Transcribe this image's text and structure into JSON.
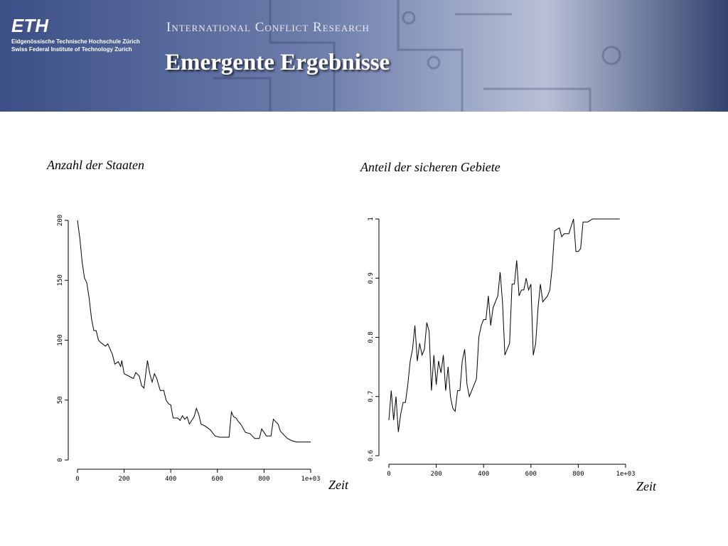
{
  "header": {
    "logo": "ETH",
    "institution_de": "Eidgenössische Technische Hochschule Zürich",
    "institution_en": "Swiss Federal Institute of Technology Zurich",
    "unit": "International Conflict Research",
    "title": "Emergente Ergebnisse"
  },
  "chart_data": [
    {
      "type": "line",
      "title": "Anzahl der Staaten",
      "xlabel": "Zeit",
      "color": "#000000",
      "xlim": [
        0,
        1000
      ],
      "xticks": [
        0,
        200,
        400,
        600,
        800,
        {
          "value": 1000,
          "label": "1e+03"
        }
      ],
      "ylim": [
        0,
        200
      ],
      "yticks": [
        0,
        50,
        100,
        150,
        200
      ],
      "grid": false,
      "x": [
        0,
        10,
        20,
        30,
        40,
        50,
        60,
        70,
        80,
        90,
        100,
        120,
        130,
        150,
        160,
        175,
        185,
        190,
        200,
        220,
        240,
        250,
        265,
        275,
        285,
        300,
        310,
        320,
        330,
        340,
        355,
        370,
        380,
        390,
        400,
        410,
        430,
        440,
        450,
        460,
        470,
        480,
        500,
        510,
        520,
        530,
        550,
        570,
        590,
        610,
        640,
        650,
        660,
        670,
        680,
        690,
        700,
        720,
        740,
        750,
        760,
        780,
        790,
        800,
        810,
        830,
        840,
        860,
        870,
        890,
        900,
        920,
        940,
        1000
      ],
      "values": [
        200,
        185,
        165,
        152,
        148,
        135,
        118,
        108,
        108,
        100,
        98,
        95,
        97,
        88,
        80,
        82,
        78,
        83,
        72,
        70,
        68,
        73,
        70,
        62,
        60,
        83,
        72,
        65,
        72,
        68,
        58,
        58,
        50,
        47,
        46,
        35,
        35,
        33,
        37,
        34,
        36,
        30,
        36,
        43,
        38,
        30,
        28,
        25,
        20,
        19,
        19,
        19,
        40,
        36,
        35,
        32,
        30,
        23,
        22,
        20,
        18,
        18,
        26,
        23,
        20,
        20,
        34,
        30,
        24,
        20,
        18,
        16,
        15,
        15
      ]
    },
    {
      "type": "line",
      "title": "Anteil der sicheren Gebiete",
      "xlabel": "Zeit",
      "color": "#000000",
      "xlim": [
        0,
        1000
      ],
      "xticks": [
        0,
        200,
        400,
        600,
        800,
        {
          "value": 1000,
          "label": "1e+03"
        }
      ],
      "ylim": [
        0.6,
        1.0
      ],
      "yticks": [
        0.6,
        0.7,
        0.8,
        0.9,
        1
      ],
      "grid": false,
      "x": [
        0,
        10,
        20,
        30,
        40,
        50,
        60,
        70,
        80,
        90,
        100,
        110,
        120,
        130,
        140,
        150,
        160,
        170,
        180,
        190,
        200,
        210,
        220,
        230,
        240,
        250,
        260,
        270,
        280,
        290,
        300,
        310,
        320,
        330,
        340,
        350,
        360,
        370,
        380,
        390,
        400,
        410,
        420,
        430,
        440,
        450,
        460,
        470,
        480,
        490,
        500,
        510,
        520,
        530,
        540,
        550,
        560,
        570,
        580,
        590,
        600,
        610,
        620,
        630,
        640,
        650,
        660,
        670,
        680,
        690,
        700,
        720,
        730,
        740,
        760,
        780,
        790,
        800,
        810,
        820,
        840,
        860,
        975
      ],
      "values": [
        0.66,
        0.71,
        0.66,
        0.7,
        0.64,
        0.67,
        0.69,
        0.69,
        0.72,
        0.76,
        0.78,
        0.82,
        0.76,
        0.79,
        0.77,
        0.78,
        0.825,
        0.81,
        0.71,
        0.77,
        0.72,
        0.76,
        0.74,
        0.77,
        0.71,
        0.75,
        0.7,
        0.68,
        0.675,
        0.71,
        0.71,
        0.76,
        0.78,
        0.72,
        0.7,
        0.71,
        0.72,
        0.73,
        0.8,
        0.82,
        0.83,
        0.83,
        0.87,
        0.82,
        0.85,
        0.86,
        0.87,
        0.91,
        0.86,
        0.77,
        0.78,
        0.79,
        0.89,
        0.89,
        0.93,
        0.87,
        0.88,
        0.88,
        0.9,
        0.88,
        0.89,
        0.77,
        0.79,
        0.85,
        0.89,
        0.86,
        0.865,
        0.87,
        0.88,
        0.92,
        0.98,
        0.985,
        0.97,
        0.975,
        0.975,
        1.0,
        0.945,
        0.945,
        0.95,
        0.995,
        0.995,
        1.0,
        1.0
      ]
    }
  ]
}
